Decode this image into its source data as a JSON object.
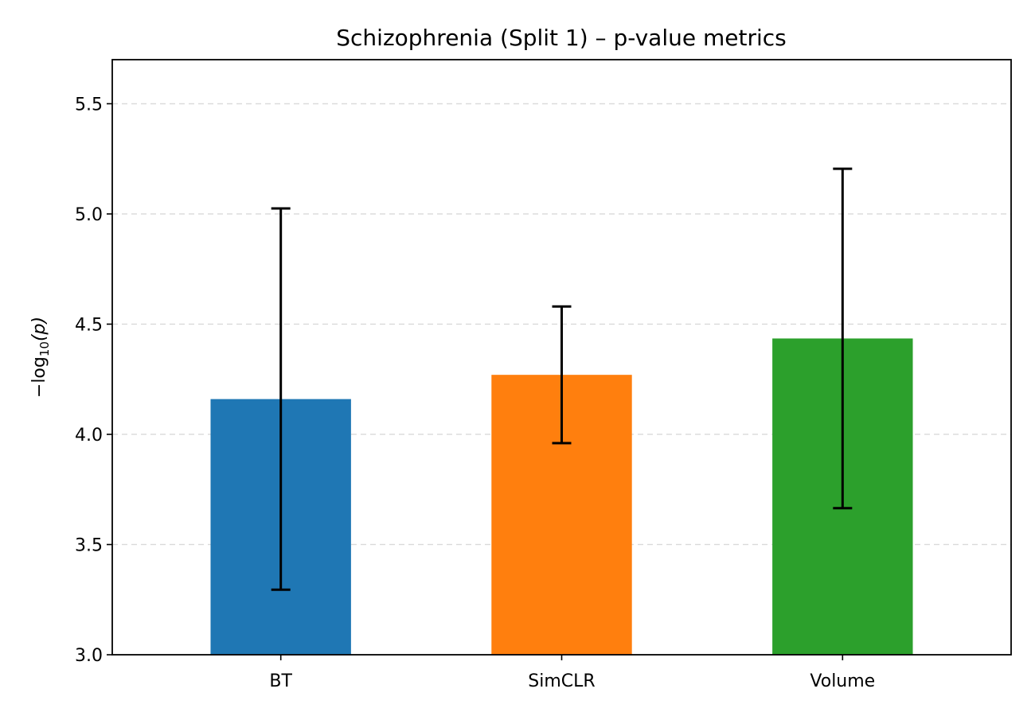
{
  "chart_data": {
    "type": "bar",
    "title": "Schizophrenia (Split 1) – p-value metrics",
    "xlabel": "",
    "ylabel": "−log10(p)",
    "ylabel_parts": {
      "prefix": "−log",
      "subscript": "10",
      "suffix": "(p)"
    },
    "categories": [
      "BT",
      "SimCLR",
      "Volume"
    ],
    "values": [
      4.16,
      4.27,
      4.435
    ],
    "error_low": [
      3.295,
      3.96,
      3.665
    ],
    "error_high": [
      5.025,
      4.58,
      5.205
    ],
    "colors": [
      "#1f77b4",
      "#ff7f0e",
      "#2ca02c"
    ],
    "ylim": [
      3.0,
      5.7
    ],
    "yticks": [
      3.0,
      3.5,
      4.0,
      4.5,
      5.0,
      5.5
    ],
    "ytick_labels": [
      "3.0",
      "3.5",
      "4.0",
      "4.5",
      "5.0",
      "5.5"
    ],
    "grid": "y-dashed",
    "legend": "none"
  }
}
